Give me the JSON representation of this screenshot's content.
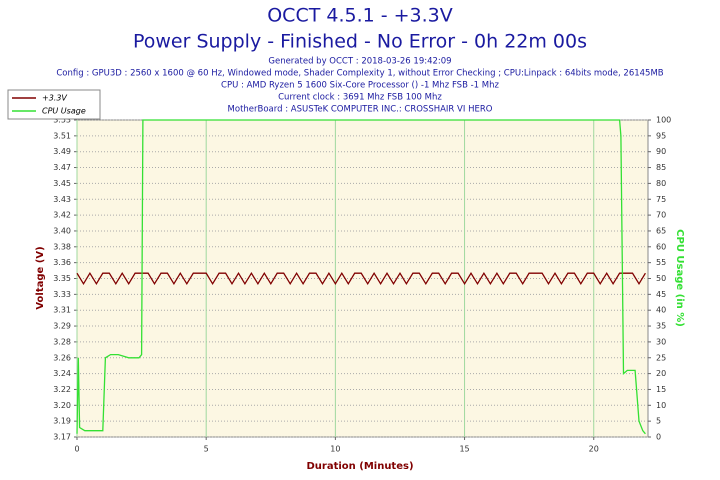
{
  "chart_data": {
    "type": "line",
    "title": "OCCT 4.5.1 - +3.3V",
    "subtitle": "Power Supply - Finished - No Error - 0h 22m 00s",
    "info": [
      "Generated by OCCT : 2018-03-26 19:42:09",
      "Config : GPU3D : 2560 x 1600 @ 60 Hz, Windowed mode, Shader Complexity 1, without Error Checking ; CPU:Linpack : 64bits mode, 26145MB",
      "CPU : AMD Ryzen 5 1600 Six-Core Processor () -1 Mhz FSB -1 Mhz",
      "Current clock : 3691 Mhz FSB 100 Mhz",
      "MotherBoard : ASUSTeK COMPUTER INC.: CROSSHAIR VI HERO"
    ],
    "xlabel": "Duration (Minutes)",
    "ylabel": "Voltage (V)",
    "y2label": "CPU Usage (in %)",
    "xlim": [
      0,
      22.1
    ],
    "xticks": [
      0,
      5,
      10,
      15,
      20
    ],
    "ylim": [
      3.17,
      3.528
    ],
    "yticks": [
      {
        "value": 3.17,
        "label": "3.17"
      },
      {
        "value": 3.1879,
        "label": "3.19"
      },
      {
        "value": 3.2058,
        "label": "3.20"
      },
      {
        "value": 3.2237,
        "label": "3.22"
      },
      {
        "value": 3.2416,
        "label": "3.24"
      },
      {
        "value": 3.2595,
        "label": "3.26"
      },
      {
        "value": 3.2774,
        "label": "3.28"
      },
      {
        "value": 3.2953,
        "label": "3.29"
      },
      {
        "value": 3.3132,
        "label": "3.31"
      },
      {
        "value": 3.3311,
        "label": "3.33"
      },
      {
        "value": 3.349,
        "label": "3.35"
      },
      {
        "value": 3.3669,
        "label": "3.36"
      },
      {
        "value": 3.3848,
        "label": "3.38"
      },
      {
        "value": 3.4027,
        "label": "3.40"
      },
      {
        "value": 3.4206,
        "label": "3.42"
      },
      {
        "value": 3.4385,
        "label": "3.43"
      },
      {
        "value": 3.4564,
        "label": "3.45"
      },
      {
        "value": 3.4743,
        "label": "3.47"
      },
      {
        "value": 3.4922,
        "label": "3.49"
      },
      {
        "value": 3.5101,
        "label": "3.51"
      },
      {
        "value": 3.528,
        "label": "3.53"
      }
    ],
    "y2lim": [
      0,
      100
    ],
    "y2ticks": [
      0,
      5,
      10,
      15,
      20,
      25,
      30,
      35,
      40,
      45,
      50,
      55,
      60,
      65,
      70,
      75,
      80,
      85,
      90,
      95,
      100
    ],
    "grid": true,
    "series": [
      {
        "name": "+3.3V",
        "color": "#800000",
        "x": [
          0,
          0.25,
          0.5,
          0.75,
          1,
          1.25,
          1.5,
          1.75,
          2,
          2.25,
          2.5,
          2.75,
          3,
          3.25,
          3.5,
          3.75,
          4,
          4.25,
          4.5,
          4.75,
          5,
          5.25,
          5.5,
          5.75,
          6,
          6.25,
          6.5,
          6.75,
          7,
          7.25,
          7.5,
          7.75,
          8,
          8.25,
          8.5,
          8.75,
          9,
          9.25,
          9.5,
          9.75,
          10,
          10.25,
          10.5,
          10.75,
          11,
          11.25,
          11.5,
          11.75,
          12,
          12.25,
          12.5,
          12.75,
          13,
          13.25,
          13.5,
          13.75,
          14,
          14.25,
          14.5,
          14.75,
          15,
          15.25,
          15.5,
          15.75,
          16,
          16.25,
          16.5,
          16.75,
          17,
          17.25,
          17.5,
          17.75,
          18,
          18.25,
          18.5,
          18.75,
          19,
          19.25,
          19.5,
          19.75,
          20,
          20.25,
          20.5,
          20.75,
          21,
          21.25,
          21.5,
          21.75,
          22
        ],
        "values": [
          3.355,
          3.343,
          3.355,
          3.343,
          3.355,
          3.355,
          3.343,
          3.355,
          3.343,
          3.355,
          3.355,
          3.355,
          3.343,
          3.355,
          3.355,
          3.343,
          3.355,
          3.343,
          3.355,
          3.355,
          3.355,
          3.343,
          3.355,
          3.355,
          3.343,
          3.355,
          3.343,
          3.355,
          3.343,
          3.355,
          3.343,
          3.355,
          3.355,
          3.343,
          3.355,
          3.343,
          3.355,
          3.355,
          3.343,
          3.355,
          3.343,
          3.355,
          3.343,
          3.355,
          3.355,
          3.343,
          3.355,
          3.343,
          3.355,
          3.343,
          3.355,
          3.343,
          3.355,
          3.355,
          3.343,
          3.355,
          3.355,
          3.343,
          3.355,
          3.355,
          3.343,
          3.355,
          3.343,
          3.355,
          3.343,
          3.355,
          3.343,
          3.355,
          3.355,
          3.343,
          3.355,
          3.355,
          3.355,
          3.343,
          3.355,
          3.343,
          3.355,
          3.355,
          3.343,
          3.355,
          3.355,
          3.343,
          3.355,
          3.343,
          3.355,
          3.355,
          3.355,
          3.343,
          3.355
        ]
      },
      {
        "name": "CPU Usage",
        "color": "#33e033",
        "axis": "y2",
        "x": [
          0,
          0.05,
          0.1,
          0.3,
          0.6,
          0.9,
          1.0,
          1.1,
          1.3,
          1.6,
          2.0,
          2.4,
          2.5,
          2.55,
          21.0,
          21.05,
          21.15,
          21.3,
          21.6,
          21.75,
          21.9,
          22.0
        ],
        "values": [
          1,
          25,
          3,
          2,
          2,
          2,
          2,
          25,
          26,
          26,
          25,
          25,
          26,
          100,
          100,
          95,
          20,
          21,
          21,
          5,
          2,
          1
        ]
      }
    ]
  }
}
